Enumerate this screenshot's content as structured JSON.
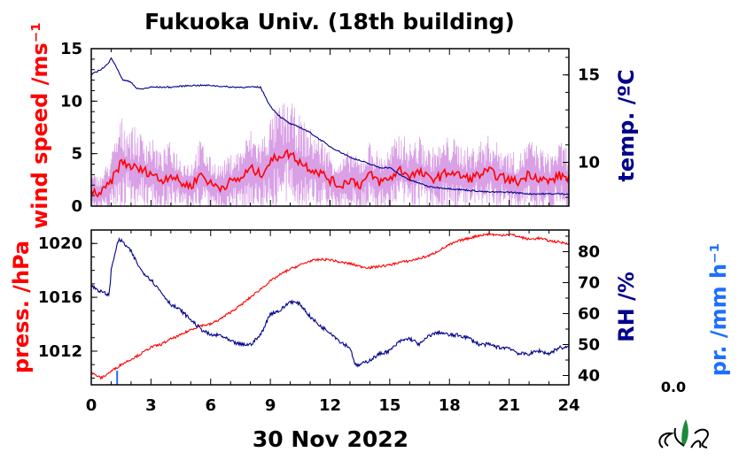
{
  "title": "Fukuoka Univ. (18th building)",
  "date_label": "30 Nov 2022",
  "precip_value": "0.0",
  "colors": {
    "wind": "#ff0000",
    "wind_raw": "#d9a0e6",
    "temp": "#00008b",
    "press": "#ff0000",
    "rh": "#00008b",
    "precip": "#1e6fff",
    "frame": "#000000"
  },
  "chart_data": [
    {
      "type": "line",
      "panel": "top",
      "xlim": [
        0,
        24
      ],
      "ylim_left": [
        0,
        15
      ],
      "ylim_right": [
        7.5,
        16.5
      ],
      "ylabel_left": "wind speed /ms⁻¹",
      "ylabel_right": "temp. /ºC",
      "yticks_left": [
        "0",
        "5",
        "10",
        "15"
      ],
      "yticks_right": [
        "10",
        "15"
      ],
      "series": [
        {
          "axis": "left",
          "x": [
            0,
            0.5,
            1,
            1.5,
            2,
            2.5,
            3,
            3.5,
            4,
            4.5,
            5,
            5.5,
            6,
            6.5,
            7,
            7.5,
            8,
            8.5,
            9,
            9.5,
            10,
            10.5,
            11,
            11.5,
            12,
            12.5,
            13,
            13.5,
            14,
            14.5,
            15,
            15.5,
            16,
            16.5,
            17,
            17.5,
            18,
            18.5,
            19,
            19.5,
            20,
            20.5,
            21,
            21.5,
            22,
            22.5,
            23,
            23.5,
            24
          ],
          "y": [
            1.3,
            1.2,
            2.3,
            4.2,
            3.8,
            3.4,
            3.2,
            2.4,
            3.0,
            2.2,
            1.9,
            3.1,
            2.1,
            1.8,
            2.3,
            2.6,
            3.6,
            3.0,
            4.2,
            4.9,
            5.0,
            4.2,
            3.6,
            3.2,
            2.5,
            1.9,
            2.6,
            2.0,
            3.0,
            2.3,
            2.6,
            3.5,
            2.9,
            3.2,
            2.6,
            2.8,
            3.3,
            2.9,
            2.6,
            3.0,
            3.3,
            2.8,
            2.5,
            2.3,
            3.1,
            2.7,
            2.3,
            2.9,
            2.7
          ]
        },
        {
          "axis": "right",
          "x": [
            0,
            0.3,
            0.6,
            0.9,
            1.0,
            1.2,
            1.4,
            1.6,
            2.0,
            2.3,
            2.6,
            3.0,
            4.0,
            5.0,
            6.0,
            7.0,
            8.0,
            8.5,
            9.0,
            9.5,
            10.0,
            10.5,
            11.0,
            11.5,
            12.0,
            12.5,
            13.0,
            13.5,
            14.0,
            14.5,
            15.0,
            15.5,
            16.0,
            16.5,
            17.0,
            18.0,
            19.0,
            20.0,
            21.0,
            22.0,
            23.0,
            24.0
          ],
          "y": [
            15.0,
            15.2,
            15.4,
            15.7,
            16.0,
            15.6,
            15.1,
            14.7,
            14.6,
            14.2,
            14.2,
            14.3,
            14.3,
            14.4,
            14.4,
            14.3,
            14.3,
            14.3,
            13.2,
            12.6,
            12.2,
            12.0,
            11.7,
            11.3,
            10.9,
            10.6,
            10.3,
            10.1,
            9.9,
            9.7,
            9.7,
            9.3,
            9.0,
            8.8,
            8.6,
            8.5,
            8.4,
            8.3,
            8.3,
            8.2,
            8.2,
            8.2
          ]
        }
      ]
    },
    {
      "type": "line",
      "panel": "bottom",
      "xlim": [
        0,
        24
      ],
      "ylim_left": [
        1009.5,
        1021
      ],
      "ylim_right": [
        37,
        87
      ],
      "ylabel_left": "press. /hPa",
      "ylabel_right": "RH /%",
      "ylabel_far_right": "pr. /mm h⁻¹",
      "xlabel": "30 Nov 2022",
      "xticks": [
        "0",
        "3",
        "6",
        "9",
        "12",
        "15",
        "18",
        "21",
        "24"
      ],
      "yticks_left": [
        "1012",
        "1016",
        "1020"
      ],
      "yticks_right": [
        "40",
        "50",
        "60",
        "70",
        "80"
      ],
      "series": [
        {
          "axis": "left",
          "x": [
            0,
            0.5,
            1,
            1.5,
            2,
            2.5,
            3,
            3.5,
            4,
            4.5,
            5,
            5.5,
            6,
            6.5,
            7,
            7.5,
            8,
            8.5,
            9,
            9.5,
            10,
            10.5,
            11,
            11.5,
            12,
            12.5,
            13,
            13.5,
            14,
            14.5,
            15,
            15.5,
            16,
            16.5,
            17,
            17.5,
            18,
            18.5,
            19,
            19.5,
            20,
            20.5,
            21,
            21.5,
            22,
            22.5,
            23,
            23.5,
            24
          ],
          "y": [
            1010.4,
            1010.0,
            1010.5,
            1011.0,
            1011.4,
            1011.8,
            1012.3,
            1012.5,
            1012.9,
            1013.2,
            1013.6,
            1013.9,
            1014.0,
            1014.4,
            1014.9,
            1015.4,
            1016.0,
            1016.6,
            1017.2,
            1017.7,
            1018.1,
            1018.4,
            1018.7,
            1018.8,
            1018.8,
            1018.6,
            1018.5,
            1018.3,
            1018.2,
            1018.3,
            1018.4,
            1018.6,
            1018.7,
            1018.9,
            1019.1,
            1019.5,
            1019.9,
            1020.2,
            1020.4,
            1020.6,
            1020.7,
            1020.6,
            1020.7,
            1020.5,
            1020.3,
            1020.4,
            1020.2,
            1020.1,
            1020.0
          ]
        },
        {
          "axis": "right",
          "x": [
            0,
            0.5,
            0.9,
            1.0,
            1.2,
            1.4,
            1.6,
            2.0,
            2.5,
            3.0,
            3.5,
            4.0,
            4.5,
            5.0,
            5.5,
            6.0,
            6.5,
            7.0,
            7.5,
            8.0,
            8.5,
            9.0,
            9.5,
            10.0,
            10.5,
            11.0,
            11.5,
            12.0,
            12.5,
            13.0,
            13.3,
            13.7,
            14.0,
            14.5,
            15.0,
            15.5,
            16.0,
            16.5,
            17.0,
            17.5,
            18.0,
            18.5,
            19.0,
            19.5,
            20.0,
            20.5,
            21.0,
            21.5,
            22.0,
            22.5,
            23.0,
            23.5,
            24.0
          ],
          "y": [
            69,
            67,
            66,
            74,
            80,
            84,
            83,
            80,
            74,
            71,
            67,
            63,
            61,
            58,
            55,
            53,
            53,
            51,
            50,
            50,
            53,
            60,
            61,
            64,
            63,
            59,
            56,
            54,
            51,
            49,
            43,
            44,
            45,
            47,
            48,
            51,
            52,
            50,
            53,
            54,
            53,
            53,
            52,
            50,
            50,
            49,
            49,
            47,
            47,
            48,
            47,
            49,
            49
          ]
        }
      ]
    },
    {
      "type": "bar",
      "panel": "bottom-precip",
      "note_value": "0.0",
      "x": [
        1.3
      ],
      "values": [
        0.0
      ]
    }
  ]
}
